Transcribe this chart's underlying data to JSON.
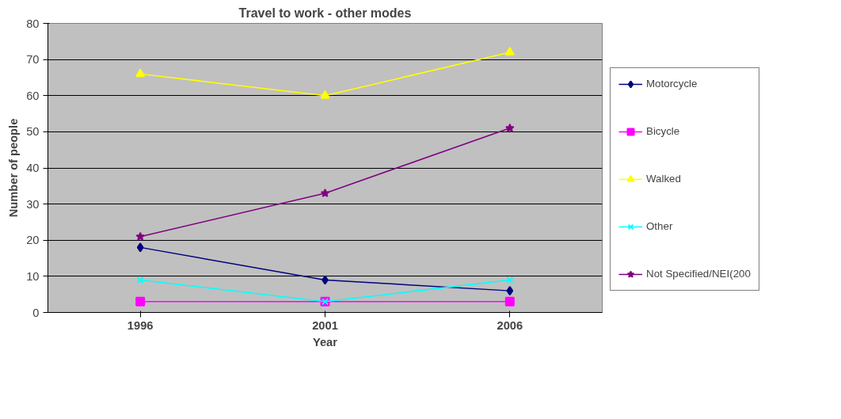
{
  "chart_data": {
    "type": "line",
    "title": "Travel to work - other modes",
    "xlabel": "Year",
    "ylabel": "Number of people",
    "categories": [
      "1996",
      "2001",
      "2006"
    ],
    "series": [
      {
        "name": "Motorcycle",
        "color": "#000080",
        "marker": "diamond",
        "values": [
          18,
          9,
          6
        ]
      },
      {
        "name": "Bicycle",
        "color": "#ff00ff",
        "marker": "square",
        "values": [
          3,
          3,
          3
        ]
      },
      {
        "name": "Walked",
        "color": "#ffff00",
        "marker": "triangle",
        "values": [
          66,
          60,
          72
        ]
      },
      {
        "name": "Other",
        "color": "#00ffff",
        "marker": "cross",
        "values": [
          9,
          3,
          9
        ]
      },
      {
        "name": "Not Specified/NEI(200",
        "color": "#800080",
        "marker": "star",
        "values": [
          21,
          33,
          51
        ]
      }
    ],
    "ylim": [
      0,
      80
    ],
    "yticks": [
      0,
      10,
      20,
      30,
      40,
      50,
      60,
      70,
      80
    ],
    "grid": "y",
    "legend": "right",
    "line_style": "solid"
  }
}
